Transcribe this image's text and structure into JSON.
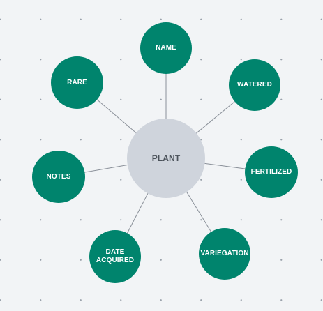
{
  "diagram": {
    "center": {
      "id": "plant",
      "label": "PLANT"
    },
    "attributes": [
      {
        "id": "name",
        "label": "NAME"
      },
      {
        "id": "watered",
        "label": "WATERED"
      },
      {
        "id": "fertilized",
        "label": "FERTILIZED"
      },
      {
        "id": "variegation",
        "label": "VARIEGATION"
      },
      {
        "id": "date-acquired",
        "label": "DATE\nACQUIRED"
      },
      {
        "id": "notes",
        "label": "NOTES"
      },
      {
        "id": "rare",
        "label": "RARE"
      }
    ],
    "edges": [
      [
        "plant",
        "name"
      ],
      [
        "plant",
        "watered"
      ],
      [
        "plant",
        "fertilized"
      ],
      [
        "plant",
        "variegation"
      ],
      [
        "plant",
        "date-acquired"
      ],
      [
        "plant",
        "notes"
      ],
      [
        "plant",
        "rare"
      ]
    ]
  },
  "colors": {
    "attribute_fill": "#00846d",
    "center_fill": "#cfd4dc",
    "center_text": "#4b525a",
    "edge": "#8a9099",
    "background": "#f2f4f6"
  }
}
